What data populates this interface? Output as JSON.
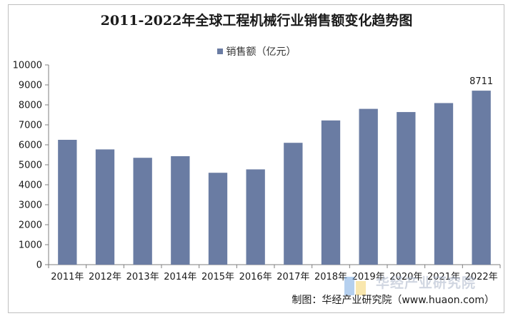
{
  "chart_data": {
    "type": "bar",
    "title": "2011-2022年全球工程机械行业销售额变化趋势图",
    "categories": [
      "2011年",
      "2012年",
      "2013年",
      "2014年",
      "2015年",
      "2016年",
      "2017年",
      "2018年",
      "2019年",
      "2020年",
      "2021年",
      "2022年"
    ],
    "series": [
      {
        "name": "销售额（亿元）",
        "values": [
          6250,
          5770,
          5350,
          5430,
          4600,
          4770,
          6100,
          7220,
          7800,
          7640,
          8090,
          8711
        ]
      }
    ],
    "data_labels": {
      "2022年": "8711"
    },
    "ylim": [
      0,
      10000
    ],
    "yticks": [
      0,
      1000,
      2000,
      3000,
      4000,
      5000,
      6000,
      7000,
      8000,
      9000,
      10000
    ],
    "xlabel": "",
    "ylabel": "",
    "legend_position": "top-center",
    "grid": false,
    "bar_color": "#6a7ca3"
  },
  "source": "制图：华经产业研究院（www.huaon.com）",
  "watermark": "华经产业研究院"
}
